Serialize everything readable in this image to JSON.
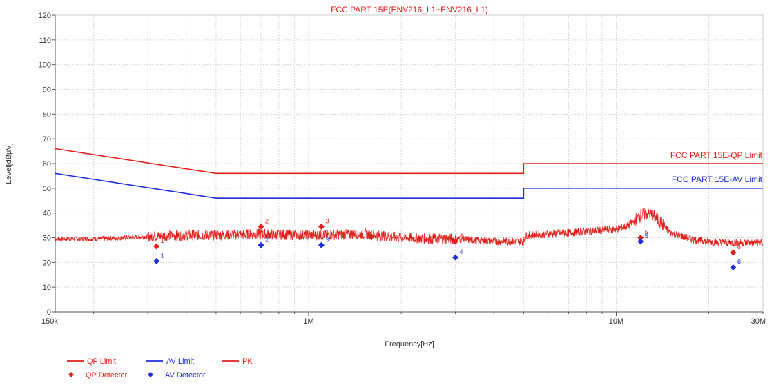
{
  "chart_data": {
    "type": "line",
    "title": "FCC PART 15E(ENV216_L1+ENV216_L1)",
    "xlabel": "Frequency[Hz]",
    "ylabel": "Level[dBµV]",
    "x_scale": "log",
    "xlim": [
      150000,
      30000000
    ],
    "ylim": [
      0,
      120
    ],
    "y_ticks": [
      0,
      10,
      20,
      30,
      40,
      50,
      60,
      70,
      80,
      90,
      100,
      110,
      120
    ],
    "x_ticks": [
      {
        "value": 150000,
        "label": "150k"
      },
      {
        "value": 1000000,
        "label": "1M"
      },
      {
        "value": 10000000,
        "label": "10M"
      },
      {
        "value": 30000000,
        "label": "30M"
      }
    ],
    "grid": true,
    "limit_labels": {
      "qp": "FCC PART 15E-QP Limit",
      "av": "FCC PART 15E-AV Limit"
    },
    "series": [
      {
        "name": "QP Limit",
        "color": "#e0201b",
        "points": [
          [
            150000,
            66
          ],
          [
            500000,
            56
          ],
          [
            5000000,
            56
          ],
          [
            5000000,
            60
          ],
          [
            30000000,
            60
          ]
        ]
      },
      {
        "name": "AV Limit",
        "color": "#1f2fd6",
        "points": [
          [
            150000,
            56
          ],
          [
            500000,
            46
          ],
          [
            5000000,
            46
          ],
          [
            5000000,
            50
          ],
          [
            30000000,
            50
          ]
        ]
      },
      {
        "name": "PK",
        "color": "#e0201b",
        "envelope": [
          [
            150000,
            29.5
          ],
          [
            200000,
            29.5
          ],
          [
            250000,
            30
          ],
          [
            300000,
            30.5
          ],
          [
            400000,
            31
          ],
          [
            500000,
            31
          ],
          [
            700000,
            31.5
          ],
          [
            1000000,
            31
          ],
          [
            1500000,
            31.5
          ],
          [
            2000000,
            30
          ],
          [
            3000000,
            29.5
          ],
          [
            4000000,
            28.5
          ],
          [
            5000000,
            28.5
          ],
          [
            5100000,
            31
          ],
          [
            7000000,
            32
          ],
          [
            10000000,
            33.5
          ],
          [
            11000000,
            35
          ],
          [
            12000000,
            39
          ],
          [
            12700000,
            40
          ],
          [
            13500000,
            38
          ],
          [
            15000000,
            32
          ],
          [
            18000000,
            29
          ],
          [
            22000000,
            28
          ],
          [
            30000000,
            28
          ]
        ]
      },
      {
        "name": "QP Detector",
        "color": "#e0201b",
        "markers": [
          {
            "label": "1",
            "x": 320000,
            "y": 26.5
          },
          {
            "label": "2",
            "x": 700000,
            "y": 34.5
          },
          {
            "label": "3",
            "x": 1100000,
            "y": 34.5
          },
          {
            "label": "4",
            "x": 3000000,
            "y": 28.5
          },
          {
            "label": "5",
            "x": 12000000,
            "y": 30
          },
          {
            "label": "6",
            "x": 24000000,
            "y": 24
          }
        ]
      },
      {
        "name": "AV Detector",
        "color": "#1f2fd6",
        "markers": [
          {
            "label": "1",
            "x": 320000,
            "y": 20.5
          },
          {
            "label": "2",
            "x": 700000,
            "y": 27
          },
          {
            "label": "3",
            "x": 1100000,
            "y": 27
          },
          {
            "label": "4",
            "x": 3000000,
            "y": 22
          },
          {
            "label": "5",
            "x": 12000000,
            "y": 28.5
          },
          {
            "label": "6",
            "x": 24000000,
            "y": 18
          }
        ]
      }
    ],
    "legend": {
      "position": "bottom-left",
      "items": [
        {
          "label": "QP Limit",
          "symbol": "line",
          "color": "#e0201b"
        },
        {
          "label": "AV Limit",
          "symbol": "line",
          "color": "#1f2fd6"
        },
        {
          "label": "PK",
          "symbol": "line",
          "color": "#e0201b"
        },
        {
          "label": "QP Detector",
          "symbol": "diamond",
          "color": "#e0201b"
        },
        {
          "label": "AV Detector",
          "symbol": "diamond",
          "color": "#1f2fd6"
        }
      ]
    }
  }
}
